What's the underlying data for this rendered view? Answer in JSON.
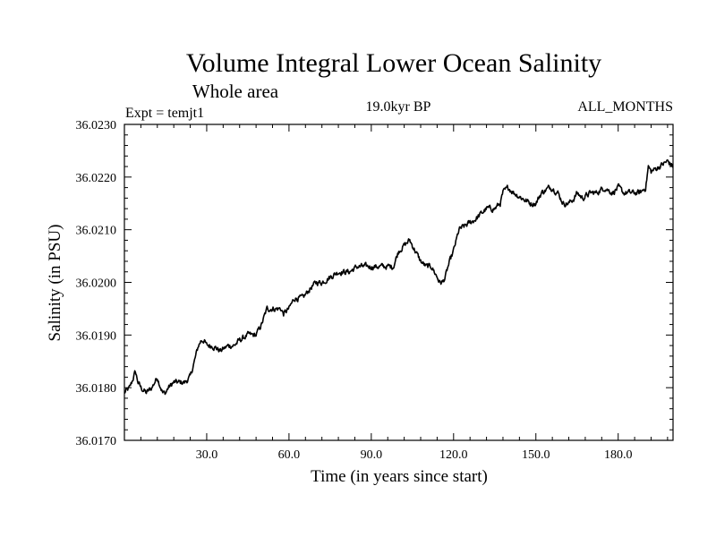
{
  "chart_data": {
    "type": "line",
    "title": "Volume Integral Lower Ocean Salinity",
    "subtitle": "Whole area",
    "experiment_label": "Expt = temjt1",
    "period_label": "19.0kyr BP",
    "months_label": "ALL_MONTHS",
    "xlabel": "Time (in years since start)",
    "ylabel": "Salinity (in PSU)",
    "xlim": [
      0,
      200
    ],
    "ylim": [
      36.017,
      36.023
    ],
    "x_ticks": [
      30,
      60,
      90,
      120,
      150,
      180
    ],
    "x_tick_labels": [
      "30.0",
      "60.0",
      "90.0",
      "120.0",
      "150.0",
      "180.0"
    ],
    "y_ticks": [
      36.017,
      36.018,
      36.019,
      36.02,
      36.021,
      36.022,
      36.023
    ],
    "y_tick_labels": [
      "36.0170",
      "36.0180",
      "36.0190",
      "36.0200",
      "36.0210",
      "36.0220",
      "36.0230"
    ],
    "grid": false,
    "series": [
      {
        "name": "Salinity",
        "color": "#000000",
        "x": [
          0,
          2,
          4,
          5,
          6,
          8,
          10,
          12,
          14,
          15,
          16,
          18,
          20,
          22,
          24,
          25,
          26,
          27,
          28,
          29,
          30,
          32,
          35,
          38,
          40,
          42,
          45,
          48,
          50,
          52,
          55,
          57,
          58,
          60,
          62,
          65,
          68,
          70,
          72,
          75,
          78,
          80,
          82,
          85,
          88,
          90,
          92,
          95,
          98,
          100,
          102,
          104,
          105,
          107,
          108,
          110,
          112,
          114,
          115,
          116,
          117,
          118,
          120,
          122,
          125,
          128,
          130,
          132,
          135,
          137,
          138,
          140,
          142,
          145,
          148,
          150,
          152,
          155,
          156,
          158,
          160,
          162,
          164,
          165,
          167,
          170,
          172,
          175,
          178,
          180,
          182,
          185,
          188,
          190,
          191,
          192,
          195,
          198,
          200
        ],
        "values": [
          36.0179,
          36.018,
          36.0183,
          36.0181,
          36.018,
          36.0179,
          36.018,
          36.0182,
          36.0179,
          36.0179,
          36.018,
          36.0181,
          36.0181,
          36.0181,
          36.0182,
          36.0184,
          36.0186,
          36.0188,
          36.0189,
          36.0189,
          36.0188,
          36.0188,
          36.0187,
          36.0188,
          36.0188,
          36.0189,
          36.019,
          36.019,
          36.0192,
          36.0195,
          36.0195,
          36.0195,
          36.0194,
          36.0195,
          36.0197,
          36.0197,
          36.0199,
          36.02,
          36.02,
          36.0201,
          36.0202,
          36.0202,
          36.0202,
          36.0203,
          36.0203,
          36.0203,
          36.0203,
          36.0203,
          36.0203,
          36.0206,
          36.0207,
          36.0208,
          36.0207,
          36.0205,
          36.0204,
          36.0203,
          36.0203,
          36.0201,
          36.02,
          36.02,
          36.0201,
          36.0203,
          36.0206,
          36.021,
          36.0211,
          36.0212,
          36.0213,
          36.0214,
          36.0214,
          36.0215,
          36.0217,
          36.0218,
          36.0217,
          36.0216,
          36.0215,
          36.0215,
          36.0217,
          36.0218,
          36.0218,
          36.0217,
          36.0215,
          36.0215,
          36.0216,
          36.0217,
          36.0216,
          36.0217,
          36.0217,
          36.0218,
          36.0217,
          36.0218,
          36.0217,
          36.0217,
          36.0217,
          36.0218,
          36.0222,
          36.0221,
          36.0222,
          36.0223,
          36.0222
        ]
      }
    ]
  }
}
